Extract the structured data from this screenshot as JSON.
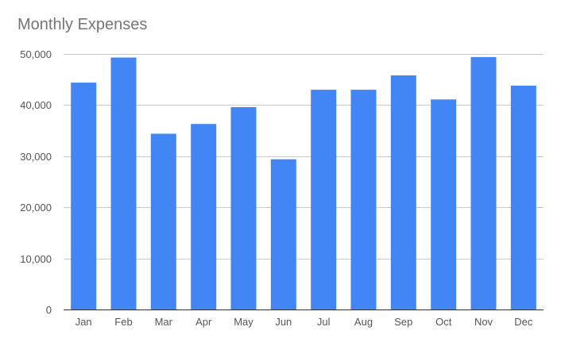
{
  "chart_data": {
    "type": "bar",
    "title": "Monthly Expenses",
    "xlabel": "",
    "ylabel": "",
    "categories": [
      "Jan",
      "Feb",
      "Mar",
      "Apr",
      "May",
      "Jun",
      "Jul",
      "Aug",
      "Sep",
      "Oct",
      "Nov",
      "Dec"
    ],
    "values": [
      44400,
      49300,
      34400,
      36300,
      39600,
      29400,
      43000,
      43000,
      45800,
      41100,
      49400,
      43800
    ],
    "ylim": [
      0,
      50000
    ],
    "yticks": [
      0,
      10000,
      20000,
      30000,
      40000,
      50000
    ],
    "ytick_labels": [
      "0",
      "10,000",
      "20,000",
      "30,000",
      "40,000",
      "50,000"
    ],
    "grid": true,
    "legend": "none",
    "bar_color": "#4285f4",
    "grid_color": "#cccccc",
    "axis_color": "#333333",
    "text_color": "#555555",
    "title_color": "#757575"
  }
}
